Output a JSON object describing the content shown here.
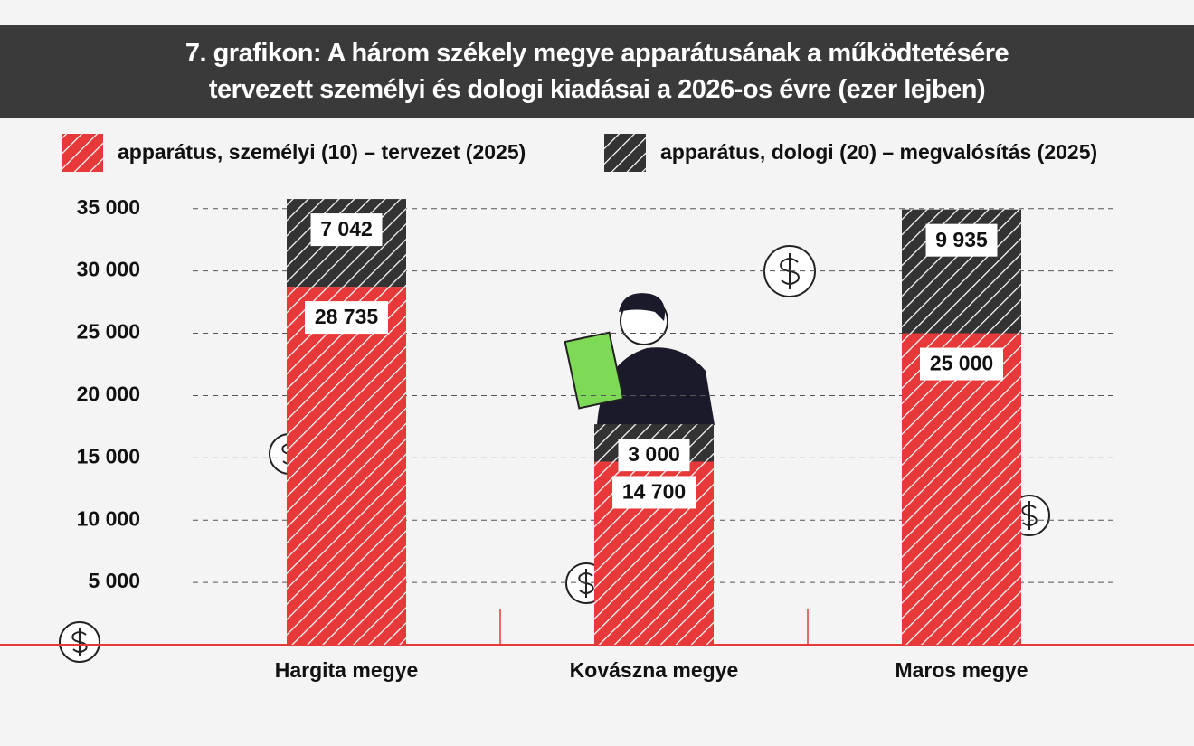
{
  "chart_data": {
    "type": "stacked_bar",
    "title": "7. grafikon: A három székely megye apparátusának a működtetésére tervezett személyi és dologi kiadásai a 2026-os évre (ezer lejben)",
    "categories": [
      "Hargita megye",
      "Kovászna megye",
      "Maros megye"
    ],
    "series": [
      {
        "name": "apparátus, személyi (10) – tervezet (2025)",
        "color": "#e8393a",
        "values": [
          28735,
          14700,
          25000
        ],
        "value_labels": [
          "28 735",
          "14 700",
          "25 000"
        ]
      },
      {
        "name": "apparátus, dologi (20) – megvalósítás (2025)",
        "color": "#333333",
        "values": [
          7042,
          3000,
          9935
        ],
        "value_labels": [
          "7 042",
          "3 000",
          "9 935"
        ]
      }
    ],
    "ylim": [
      0,
      36000
    ],
    "yticks": [
      {
        "value": 5000,
        "label": "5 000"
      },
      {
        "value": 10000,
        "label": "10 000"
      },
      {
        "value": 15000,
        "label": "15 000"
      },
      {
        "value": 20000,
        "label": "20 000"
      },
      {
        "value": 25000,
        "label": "25 000"
      },
      {
        "value": 30000,
        "label": "30 000"
      },
      {
        "value": 35000,
        "label": "35 000"
      }
    ],
    "grid": true
  }
}
